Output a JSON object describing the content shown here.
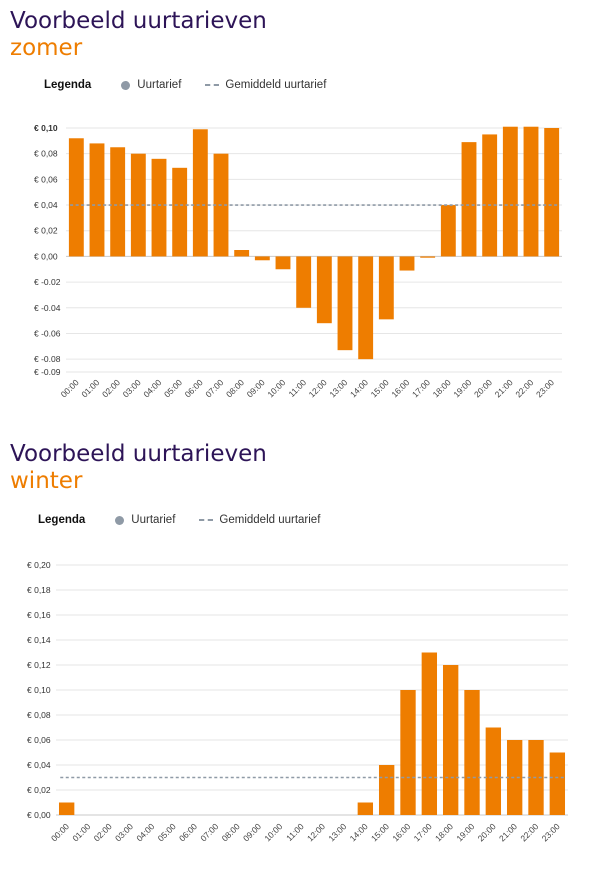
{
  "summer": {
    "title_line1": "Voorbeeld uurtarieven",
    "title_line2": "zomer",
    "legend": {
      "title": "Legenda",
      "bar_label": "Uurtarief",
      "avg_label": "Gemiddeld uurtarief"
    },
    "chart_data": {
      "type": "bar",
      "categories": [
        "00:00",
        "01:00",
        "02:00",
        "03:00",
        "04:00",
        "05:00",
        "06:00",
        "07:00",
        "08:00",
        "09:00",
        "10:00",
        "11:00",
        "12:00",
        "13:00",
        "14:00",
        "15:00",
        "16:00",
        "17:00",
        "18:00",
        "19:00",
        "20:00",
        "21:00",
        "22:00",
        "23:00"
      ],
      "values": [
        0.092,
        0.088,
        0.085,
        0.08,
        0.076,
        0.069,
        0.099,
        0.08,
        0.005,
        -0.003,
        -0.01,
        -0.04,
        -0.052,
        -0.073,
        -0.08,
        -0.049,
        -0.011,
        -0.001,
        0.04,
        0.089,
        0.095,
        0.101,
        0.101,
        0.1
      ],
      "average": 0.04,
      "ylim": [
        -0.09,
        0.1
      ],
      "yticks": [
        0.1,
        0.08,
        0.06,
        0.04,
        0.02,
        0.0,
        -0.02,
        -0.04,
        -0.06,
        -0.08,
        -0.09
      ],
      "ytick_labels": [
        "€ 0,10",
        "€ 0,08",
        "€ 0,06",
        "€ 0,04",
        "€ 0,02",
        "€ 0,00",
        "€ -0.02",
        "€ -0.04",
        "€ -0.06",
        "€ -0.08",
        "€ -0.09"
      ],
      "bold_tick_index": 0,
      "bar_color": "#ee7d00",
      "avg_color": "#8f9aa6",
      "grid": true
    }
  },
  "winter": {
    "title_line1": "Voorbeeld uurtarieven",
    "title_line2": "winter",
    "legend": {
      "title": "Legenda",
      "bar_label": "Uurtarief",
      "avg_label": "Gemiddeld uurtarief"
    },
    "chart_data": {
      "type": "bar",
      "categories": [
        "00:00",
        "01:00",
        "02:00",
        "03:00",
        "04:00",
        "05:00",
        "06:00",
        "07:00",
        "08:00",
        "09:00",
        "10:00",
        "11:00",
        "12:00",
        "13:00",
        "14:00",
        "15:00",
        "16:00",
        "17:00",
        "18:00",
        "19:00",
        "20:00",
        "21:00",
        "22:00",
        "23:00"
      ],
      "values": [
        0.01,
        0,
        0,
        0,
        0,
        0,
        0,
        0,
        0,
        0,
        0,
        0,
        0,
        0,
        0.01,
        0.04,
        0.1,
        0.13,
        0.12,
        0.1,
        0.07,
        0.06,
        0.06,
        0.05
      ],
      "average": 0.03,
      "ylim": [
        0.0,
        0.2
      ],
      "yticks": [
        0.2,
        0.18,
        0.16,
        0.14,
        0.12,
        0.1,
        0.08,
        0.06,
        0.04,
        0.02,
        0.0
      ],
      "ytick_labels": [
        "€ 0,20",
        "€ 0,18",
        "€ 0,16",
        "€ 0,14",
        "€ 0,12",
        "€ 0,10",
        "€ 0,08",
        "€ 0,06",
        "€ 0,04",
        "€ 0,02",
        "€ 0,00"
      ],
      "bold_tick_index": -1,
      "bar_color": "#ee7d00",
      "avg_color": "#8f9aa6",
      "grid": true
    }
  }
}
